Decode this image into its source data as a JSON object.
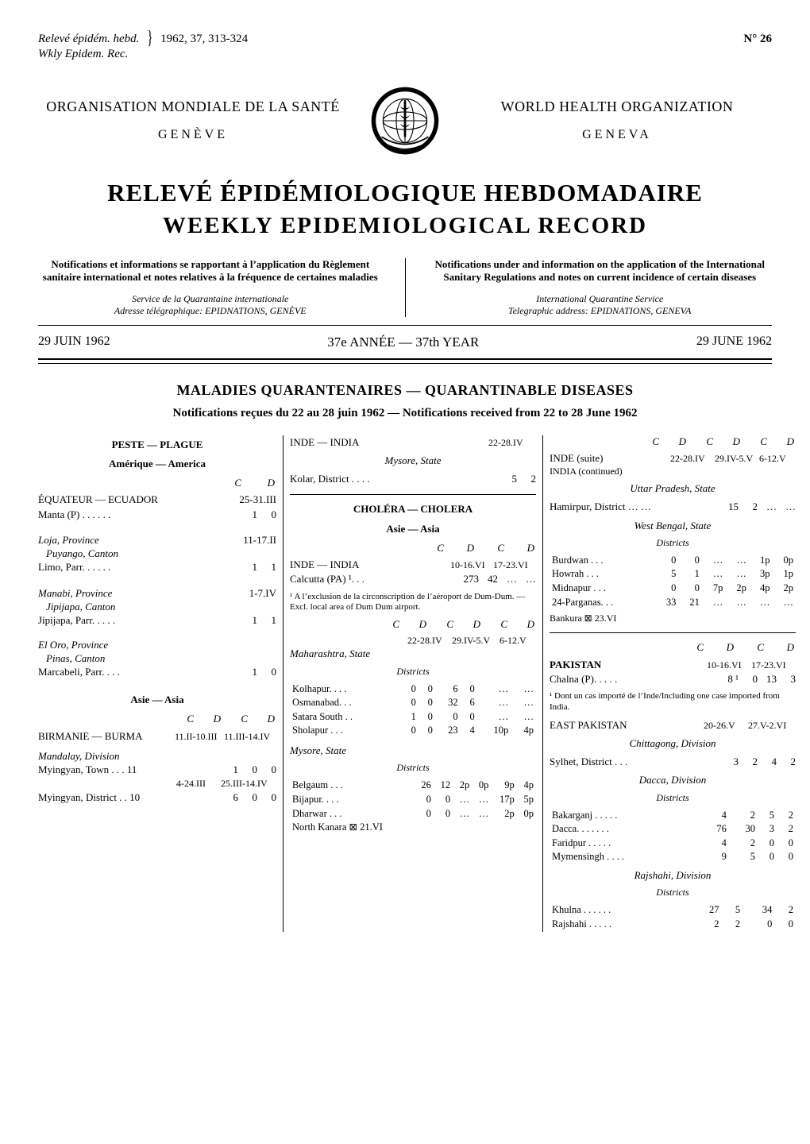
{
  "journal_ref": {
    "left_line1": "Relevé épidém. hebd.",
    "left_line2": "Wkly Epidem. Rec.",
    "issue": "1962, 37, 313-324",
    "issue_no": "N° 26"
  },
  "header": {
    "org_left": "ORGANISATION MONDIALE DE LA SANTÉ",
    "city_left": "GENÈVE",
    "org_right": "WORLD HEALTH ORGANIZATION",
    "city_right": "GENEVA"
  },
  "title_fr": "RELEVÉ ÉPIDÉMIOLOGIQUE HEBDOMADAIRE",
  "title_en": "WEEKLY EPIDEMIOLOGICAL RECORD",
  "intro": {
    "fr": "Notifications et informations se rapportant à l’application du Règlement sanitaire international et notes relatives à la fréquence de certaines maladies",
    "en": "Notifications under and information on the application of the International Sanitary Regulations and notes on current incidence of certain diseases",
    "svc_fr_1": "Service de la Quarantaine internationale",
    "svc_fr_2": "Adresse télégraphique: EPIDNATIONS, GENÈVE",
    "svc_en_1": "International Quarantine Service",
    "svc_en_2": "Telegraphic address: EPIDNATIONS, GENEVA"
  },
  "dateline": {
    "left": "29 JUIN 1962",
    "mid": "37e  ANNÉE   —   37th  YEAR",
    "right": "29 JUNE 1962"
  },
  "section": "MALADIES QUARANTENAIRES — QUARANTINABLE DISEASES",
  "subsection": "Notifications reçues du 22 au 28 juin 1962 — Notifications received from 22 to 28 June 1962",
  "col1": {
    "plague_hdr": "PESTE — PLAGUE",
    "america_hdr": "Amérique — America",
    "cd": [
      "C",
      "D"
    ],
    "ecuador": {
      "label": "ÉQUATEUR — ECUADOR",
      "period": "25-31.III"
    },
    "manta": {
      "label": "Manta (P) .  .  .  .  .  .",
      "c": "1",
      "d": "0"
    },
    "loja_hdr": {
      "prov": "Loja, Province",
      "cant": "Puyango, Canton",
      "period": "11-17.II"
    },
    "limo": {
      "label": "Limo, Parr. .  .  .  .  .",
      "c": "1",
      "d": "1"
    },
    "manabi_hdr": {
      "prov": "Manabi, Province",
      "cant": "Jipijapa, Canton",
      "period": "1-7.IV"
    },
    "jipijapa": {
      "label": "Jipijapa, Parr. .  .  .  .",
      "c": "1",
      "d": "1"
    },
    "eloro_hdr": {
      "prov": "El Oro, Province",
      "cant": "Pinas, Canton"
    },
    "marcabeli": {
      "label": "Marcabeli, Parr. .  .  .",
      "c": "1",
      "d": "0"
    },
    "asia_hdr": "Asie — Asia",
    "burma_line": {
      "label": "BIRMANIE — BURMA",
      "p1": "11.II-10.III",
      "p2": "11.III-14.IV"
    },
    "mandalay_hdr": "Mandalay, Division",
    "myingyan_t": {
      "label": "Myingyan, Town .  .  .  11",
      "c1": "1",
      "c2": "0",
      "d2": "0"
    },
    "period_424": "4-24.III",
    "period_25": "25.III-14.IV",
    "myingyan_d": {
      "label": "Myingyan, District .  .  10",
      "c1": "6",
      "c2": "0",
      "d2": "0"
    },
    "cd_pair2": [
      "C",
      "D",
      "C",
      "D"
    ]
  },
  "col2": {
    "india_hdr": "INDE — INDIA",
    "period": "22-28.IV",
    "mysore": "Mysore, State",
    "kolar": {
      "label": "Kolar, District .  .  .  .",
      "c": "5",
      "d": "2"
    },
    "cholera_hdr": "CHOLÉRA — CHOLERA",
    "asia_hdr": "Asie — Asia",
    "india2": "INDE — INDIA",
    "india2_periods": [
      "10-16.VI",
      "17-23.VI"
    ],
    "calcutta": {
      "label": "Calcutta (PA) ¹.  .  .",
      "c1": "273",
      "d1": "42",
      "c2": "…",
      "d2": "…"
    },
    "footnote1": "¹ A l’exclusion de la circonscription de l’aéroport de Dum-Dum. — Excl. local area of Dum Dum airport.",
    "periods3": [
      "22-28.IV",
      "29.IV-5.V",
      "6-12.V"
    ],
    "maharashtra": "Maharashtra, State",
    "maharashtra_sub": "Districts",
    "maha_rows": [
      {
        "n": "Kolhapur. .  .  .",
        "v": [
          "0",
          "0",
          "6",
          "0",
          "…",
          "…"
        ]
      },
      {
        "n": "Osmanabad. .  .",
        "v": [
          "0",
          "0",
          "32",
          "6",
          "…",
          "…"
        ]
      },
      {
        "n": "Satara South .  .",
        "v": [
          "1",
          "0",
          "0",
          "0",
          "…",
          "…"
        ]
      },
      {
        "n": "Sholapur .  .  .",
        "v": [
          "0",
          "0",
          "23",
          "4",
          "10p",
          "4p"
        ]
      }
    ],
    "mysore2": "Mysore, State",
    "mysore2_sub": "Districts",
    "mysore_rows": [
      {
        "n": "Belgaum .  .  .",
        "v": [
          "26",
          "12",
          "2p",
          "0p",
          "9p",
          "4p"
        ]
      },
      {
        "n": "Bijapur. .  .  .",
        "v": [
          "0",
          "0",
          "…",
          "…",
          "17p",
          "5p"
        ]
      },
      {
        "n": "Dharwar .  .  .",
        "v": [
          "0",
          "0",
          "…",
          "…",
          "2p",
          "0p"
        ]
      },
      {
        "n": "North Kanara ⊠ 21.VI",
        "v": [
          "",
          "",
          "",
          "",
          "",
          ""
        ]
      }
    ]
  },
  "col3": {
    "inde_suite": "INDE (suite)",
    "india_cont": "INDIA (continued)",
    "periods3": [
      "22-28.IV",
      "29.IV-5.V",
      "6-12.V"
    ],
    "uttar": "Uttar Pradesh, State",
    "hamirpur": {
      "label": "Hamirpur, District …  …",
      "v": [
        "15",
        "2",
        "…",
        "…"
      ]
    },
    "westbengal": "West Bengal, State",
    "wb_sub": "Districts",
    "wb_rows": [
      {
        "n": "Burdwan .  .  .",
        "v": [
          "0",
          "0",
          "…",
          "…",
          "1p",
          "0p"
        ]
      },
      {
        "n": "Howrah  .  .  .",
        "v": [
          "5",
          "1",
          "…",
          "…",
          "3p",
          "1p"
        ]
      },
      {
        "n": "Midnapur .  .  .",
        "v": [
          "0",
          "0",
          "7p",
          "2p",
          "4p",
          "2p"
        ]
      },
      {
        "n": "24-Parganas.  .  .",
        "v": [
          "33",
          "21",
          "…",
          "…",
          "…",
          "…"
        ]
      }
    ],
    "bankura": "Bankura ⊠ 23.VI",
    "pakistan_hdr": "PAKISTAN",
    "pakistan_periods": [
      "10-16.VI",
      "17-23.VI"
    ],
    "chalna": {
      "label": "Chalna (P). .  .  .  .",
      "v": [
        "8 ¹",
        "0",
        "13",
        "3"
      ]
    },
    "footnote_pk": "¹ Dont un cas importé de l’Inde/Including one case imported from India.",
    "east_pak_hdr": "EAST PAKISTAN",
    "east_pak_periods": [
      "20-26.V",
      "27.V-2.VI"
    ],
    "chittagong": "Chittagong, Division",
    "sylhet": {
      "label": "Sylhet, District .  .  .",
      "v": [
        "3",
        "2",
        "4",
        "2"
      ]
    },
    "dacca_div": "Dacca, Division",
    "dacca_sub": "Districts",
    "dacca_rows": [
      {
        "n": "Bakarganj .  .  .  .  .",
        "v": [
          "4",
          "2",
          "5",
          "2"
        ]
      },
      {
        "n": "Dacca. .  .  .  .  .  .",
        "v": [
          "76",
          "30",
          "3",
          "2"
        ]
      },
      {
        "n": "Faridpur  .  .  .  .  .",
        "v": [
          "4",
          "2",
          "0",
          "0"
        ]
      },
      {
        "n": "Mymensingh .  .  .  .",
        "v": [
          "9",
          "5",
          "0",
          "0"
        ]
      }
    ],
    "rajshahi_div": "Rajshahi, Division",
    "rajshahi_sub": "Districts",
    "rajshahi_rows": [
      {
        "n": "Khulna .  .  .  .  .  .",
        "v": [
          "27",
          "5",
          "34",
          "2"
        ]
      },
      {
        "n": "Rajshahi  .  .  .  .  .",
        "v": [
          "2",
          "2",
          "0",
          "0"
        ]
      }
    ]
  }
}
